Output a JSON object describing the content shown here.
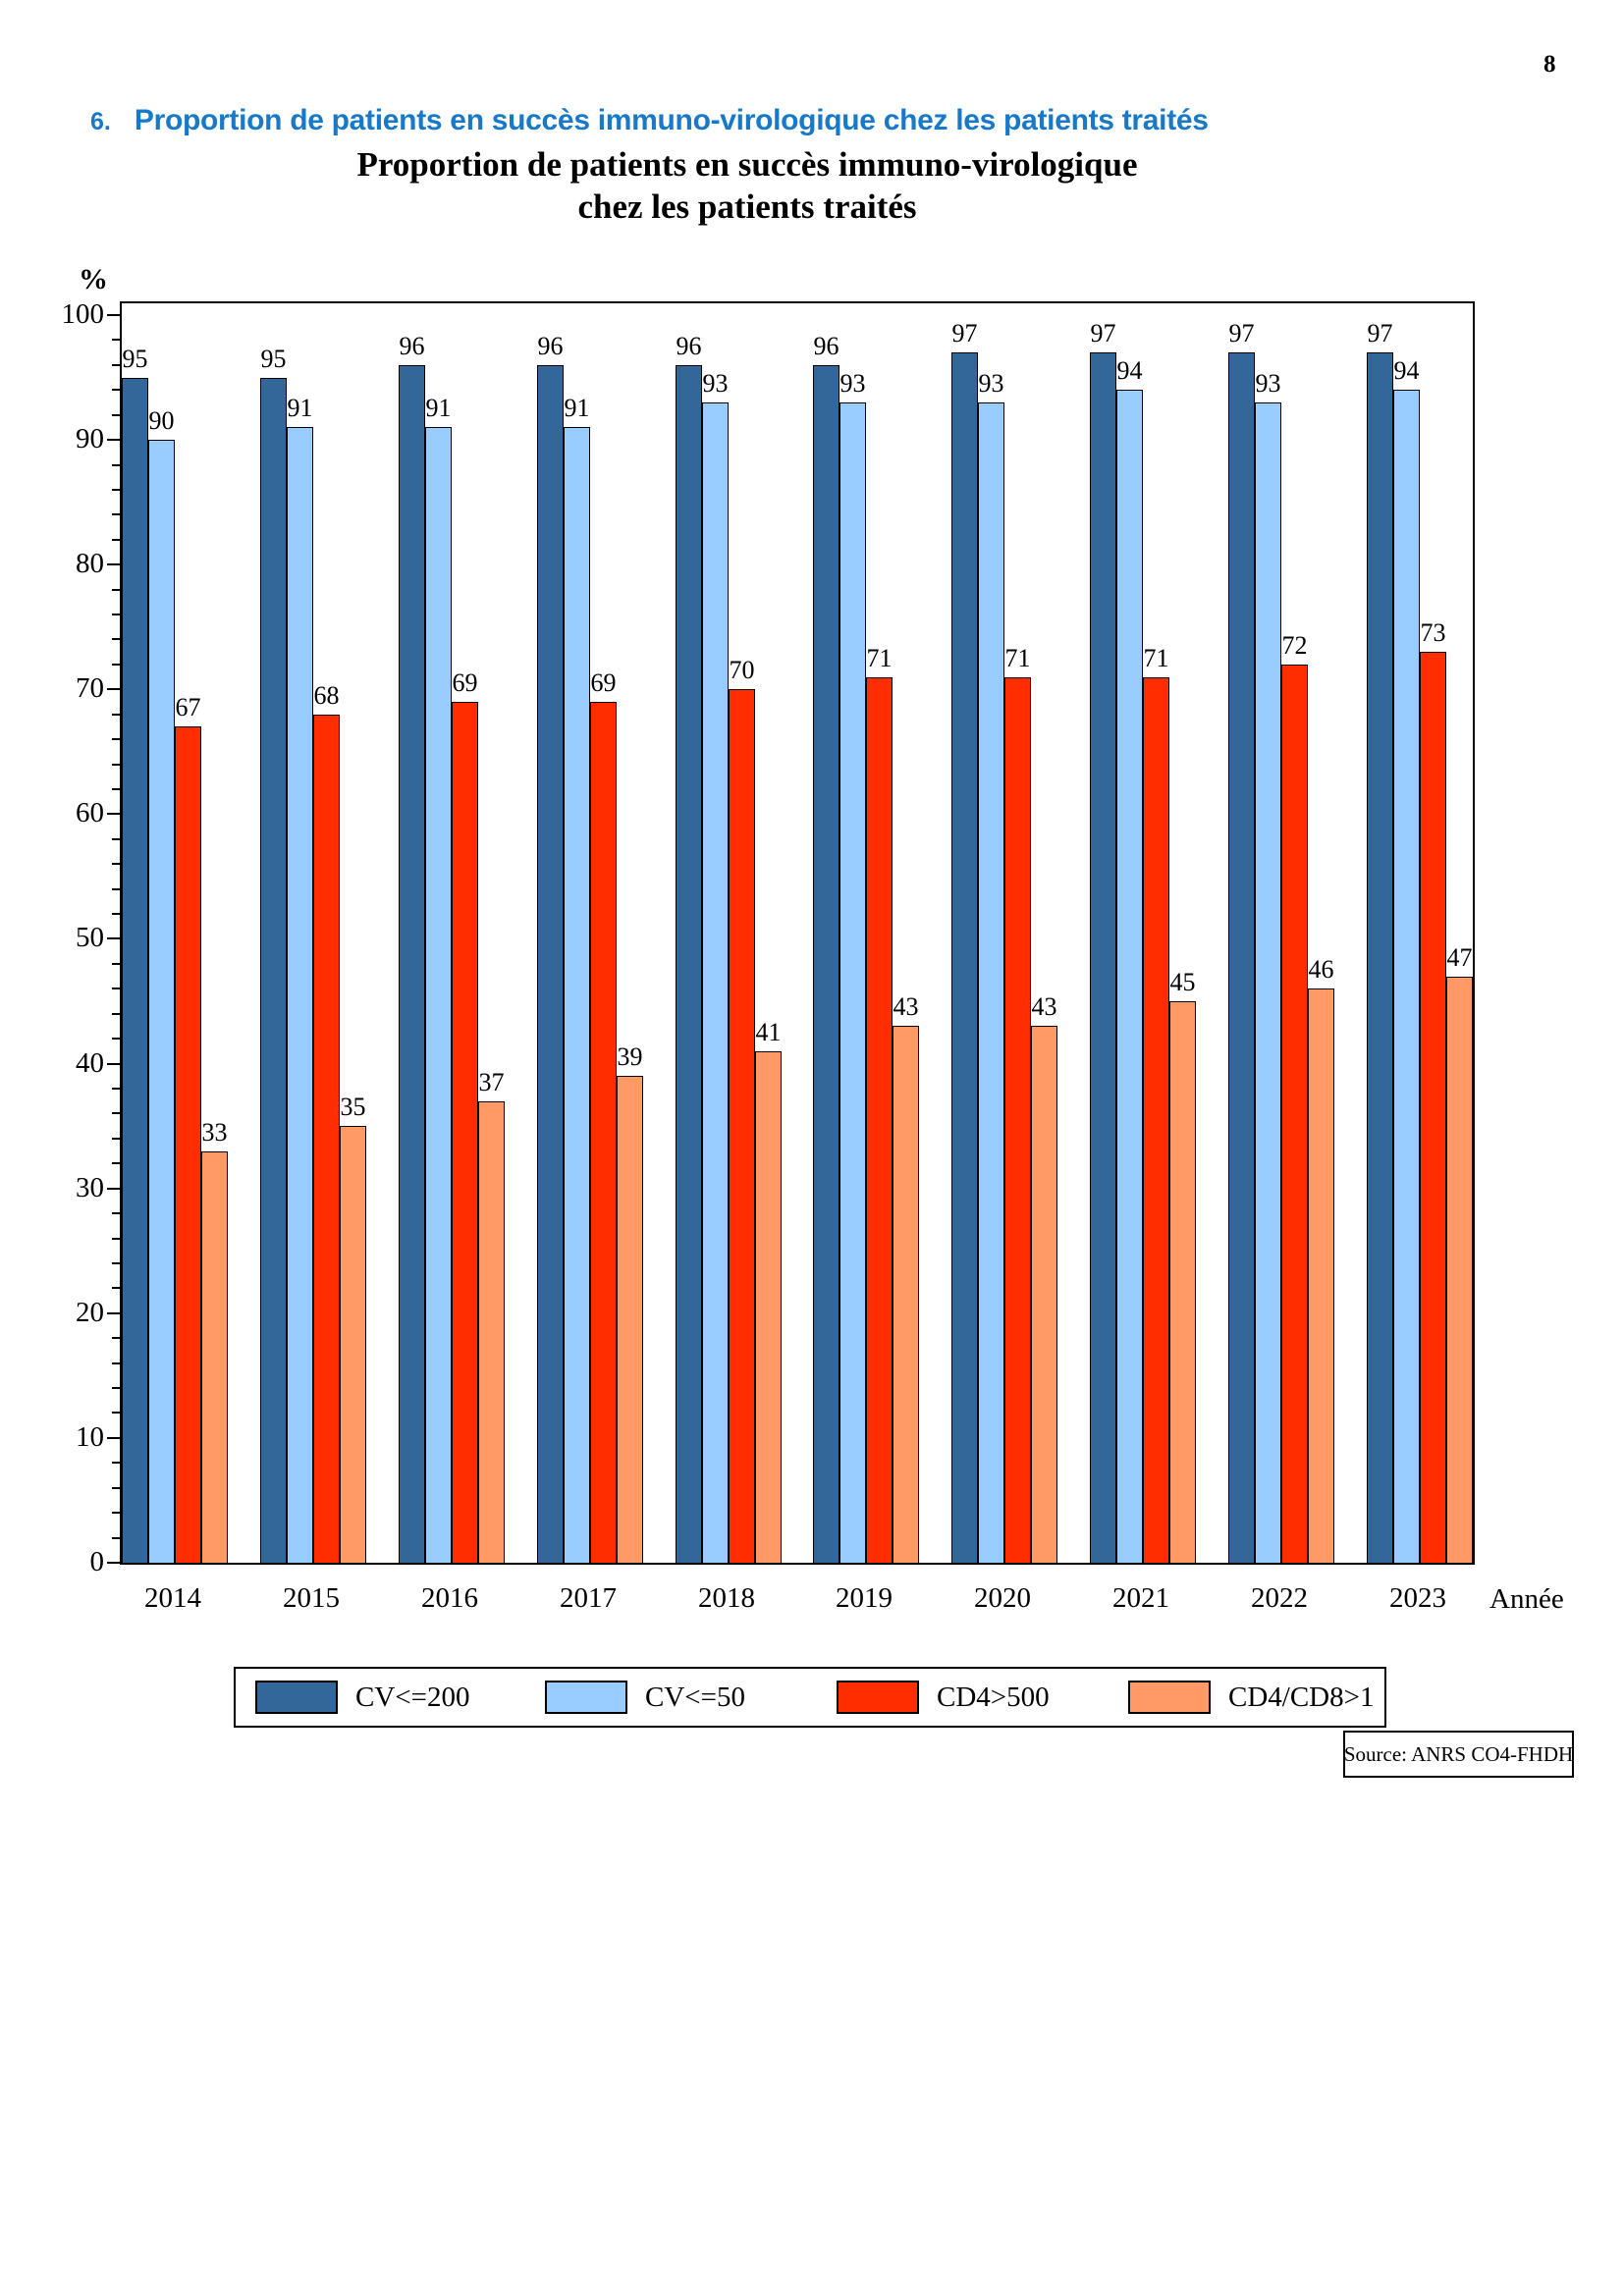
{
  "page": {
    "number": "8"
  },
  "heading": {
    "number": "6.",
    "text": "Proportion de patients en succès immuno-virologique chez les patients traités",
    "color": "#1779C8"
  },
  "source": {
    "label": "Source: ANRS CO4-FHDH"
  },
  "chart_data": {
    "type": "bar",
    "title_lines": [
      "Proportion de patients en succès immuno-virologique",
      "chez les patients traités"
    ],
    "ylabel": "%",
    "xlabel": "Année",
    "ylim": [
      0,
      100
    ],
    "ytick_step": 10,
    "minor_tick_step": 2,
    "grid": false,
    "legend_position": "bottom",
    "categories": [
      "2014",
      "2015",
      "2016",
      "2017",
      "2018",
      "2019",
      "2020",
      "2021",
      "2022",
      "2023"
    ],
    "series": [
      {
        "name": "CV<=200",
        "color": "#336699",
        "values": [
          95,
          95,
          96,
          96,
          96,
          96,
          97,
          97,
          97,
          97
        ]
      },
      {
        "name": "CV<=50",
        "color": "#99CCFF",
        "values": [
          90,
          91,
          91,
          91,
          93,
          93,
          93,
          94,
          93,
          94
        ]
      },
      {
        "name": "CD4>500",
        "color": "#FF2D00",
        "values": [
          67,
          68,
          69,
          69,
          70,
          71,
          71,
          71,
          72,
          73
        ]
      },
      {
        "name": "CD4/CD8>1",
        "color": "#FF9966",
        "values": [
          33,
          35,
          37,
          39,
          41,
          43,
          43,
          45,
          46,
          47
        ]
      }
    ]
  }
}
